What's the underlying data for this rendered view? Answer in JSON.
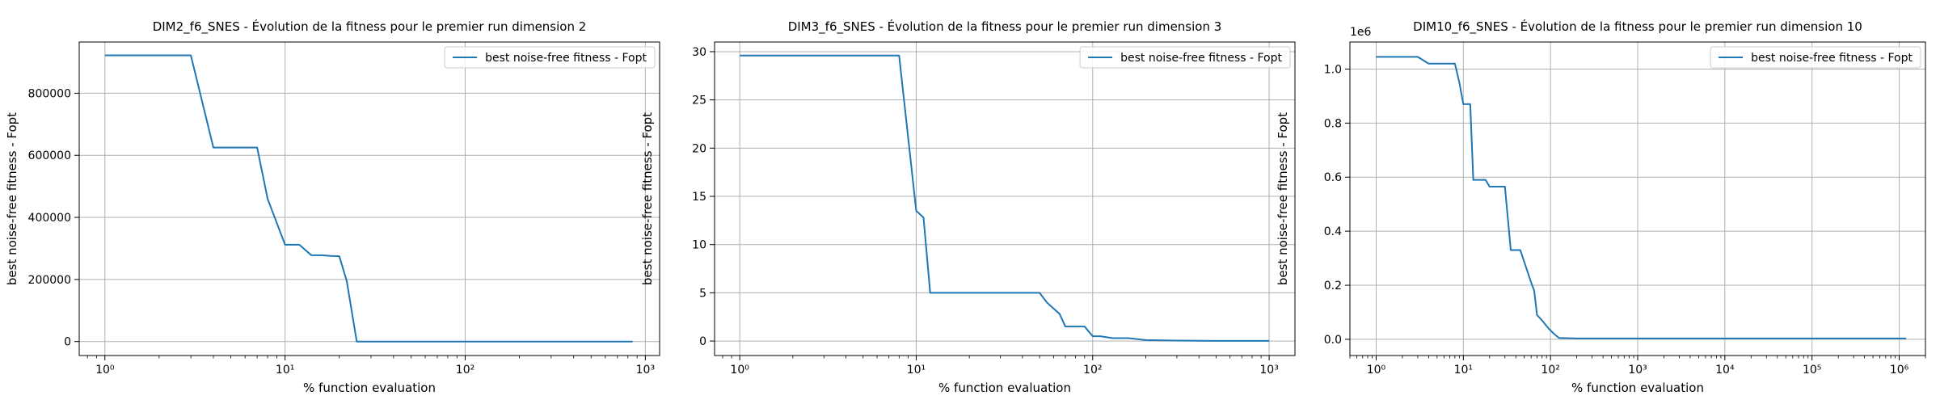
{
  "chart_data": [
    {
      "type": "line",
      "title": "DIM2_f6_SNES - Évolution de la fitness pour le premier run dimension 2",
      "xlabel": "% function evaluation",
      "ylabel": "best noise-free fitness - Fopt",
      "xscale": "log",
      "xlim": [
        0.72,
        1200
      ],
      "ylim": [
        -45000,
        965000
      ],
      "grid": true,
      "legend_position": "top-right",
      "offset_label": "",
      "xticks": [
        {
          "value": 1,
          "label": "10⁰"
        },
        {
          "value": 10,
          "label": "10¹"
        },
        {
          "value": 100,
          "label": "10²"
        },
        {
          "value": 1000,
          "label": "10³"
        }
      ],
      "yticks": [
        {
          "value": 0,
          "label": "0"
        },
        {
          "value": 200000,
          "label": "200000"
        },
        {
          "value": 400000,
          "label": "400000"
        },
        {
          "value": 600000,
          "label": "600000"
        },
        {
          "value": 800000,
          "label": "800000"
        }
      ],
      "series": [
        {
          "name": "best noise-free fitness - Fopt",
          "color": "#1f77b4",
          "x": [
            1,
            2,
            3,
            4,
            5,
            6,
            7,
            8,
            10,
            12,
            14,
            16,
            18,
            20,
            22,
            25,
            30,
            50,
            100,
            200,
            500,
            850
          ],
          "y": [
            922000,
            922000,
            922000,
            625000,
            625000,
            625000,
            625000,
            460000,
            312000,
            312000,
            278000,
            278000,
            276000,
            275000,
            195000,
            0,
            0,
            0,
            0,
            0,
            0,
            0
          ]
        }
      ]
    },
    {
      "type": "line",
      "title": "DIM3_f6_SNES - Évolution de la fitness pour le premier run dimension 3",
      "xlabel": "% function evaluation",
      "ylabel": "best noise-free fitness - Fopt",
      "xscale": "log",
      "xlim": [
        0.72,
        1400
      ],
      "ylim": [
        -1.5,
        31
      ],
      "grid": true,
      "legend_position": "top-right",
      "offset_label": "",
      "xticks": [
        {
          "value": 1,
          "label": "10⁰"
        },
        {
          "value": 10,
          "label": "10¹"
        },
        {
          "value": 100,
          "label": "10²"
        },
        {
          "value": 1000,
          "label": "10³"
        }
      ],
      "yticks": [
        {
          "value": 0,
          "label": "0"
        },
        {
          "value": 5,
          "label": "5"
        },
        {
          "value": 10,
          "label": "10"
        },
        {
          "value": 15,
          "label": "15"
        },
        {
          "value": 20,
          "label": "20"
        },
        {
          "value": 25,
          "label": "25"
        },
        {
          "value": 30,
          "label": "30"
        }
      ],
      "series": [
        {
          "name": "best noise-free fitness - Fopt",
          "color": "#1f77b4",
          "x": [
            1,
            2,
            4,
            8,
            10,
            11,
            12,
            15,
            20,
            30,
            50,
            55,
            65,
            70,
            80,
            90,
            100,
            110,
            130,
            160,
            200,
            300,
            500,
            1000
          ],
          "y": [
            29.6,
            29.6,
            29.6,
            29.6,
            13.5,
            12.8,
            5.0,
            5.0,
            5.0,
            5.0,
            5.0,
            4.0,
            2.8,
            1.5,
            1.5,
            1.5,
            0.5,
            0.5,
            0.3,
            0.3,
            0.1,
            0.05,
            0.02,
            0.02
          ]
        }
      ]
    },
    {
      "type": "line",
      "title": "DIM10_f6_SNES - Évolution de la fitness pour le premier run dimension 10",
      "xlabel": "% function evaluation",
      "ylabel": "best noise-free fitness - Fopt",
      "xscale": "log",
      "xlim": [
        0.5,
        2000000
      ],
      "ylim": [
        -0.06,
        1.1
      ],
      "grid": true,
      "legend_position": "top-right",
      "offset_label": "1e6",
      "xticks": [
        {
          "value": 1,
          "label": "10⁰"
        },
        {
          "value": 10,
          "label": "10¹"
        },
        {
          "value": 100,
          "label": "10²"
        },
        {
          "value": 1000,
          "label": "10³"
        },
        {
          "value": 10000,
          "label": "10⁴"
        },
        {
          "value": 100000,
          "label": "10⁵"
        },
        {
          "value": 1000000,
          "label": "10⁶"
        }
      ],
      "yticks": [
        {
          "value": 0,
          "label": "0.0"
        },
        {
          "value": 0.2,
          "label": "0.2"
        },
        {
          "value": 0.4,
          "label": "0.4"
        },
        {
          "value": 0.6,
          "label": "0.6"
        },
        {
          "value": 0.8,
          "label": "0.8"
        },
        {
          "value": 1.0,
          "label": "1.0"
        }
      ],
      "series": [
        {
          "name": "best noise-free fitness - Fopt",
          "color": "#1f77b4",
          "x": [
            1,
            2,
            3,
            4,
            8,
            9,
            10,
            11,
            12,
            13,
            18,
            20,
            30,
            35,
            45,
            60,
            65,
            70,
            80,
            95,
            110,
            125,
            200,
            1000,
            10000,
            100000,
            1200000
          ],
          "y": [
            1.045,
            1.045,
            1.045,
            1.02,
            1.02,
            0.95,
            0.87,
            0.87,
            0.87,
            0.59,
            0.59,
            0.565,
            0.565,
            0.33,
            0.33,
            0.21,
            0.18,
            0.09,
            0.07,
            0.04,
            0.02,
            0.005,
            0.003,
            0.003,
            0.003,
            0.003,
            0.003
          ]
        }
      ]
    }
  ]
}
